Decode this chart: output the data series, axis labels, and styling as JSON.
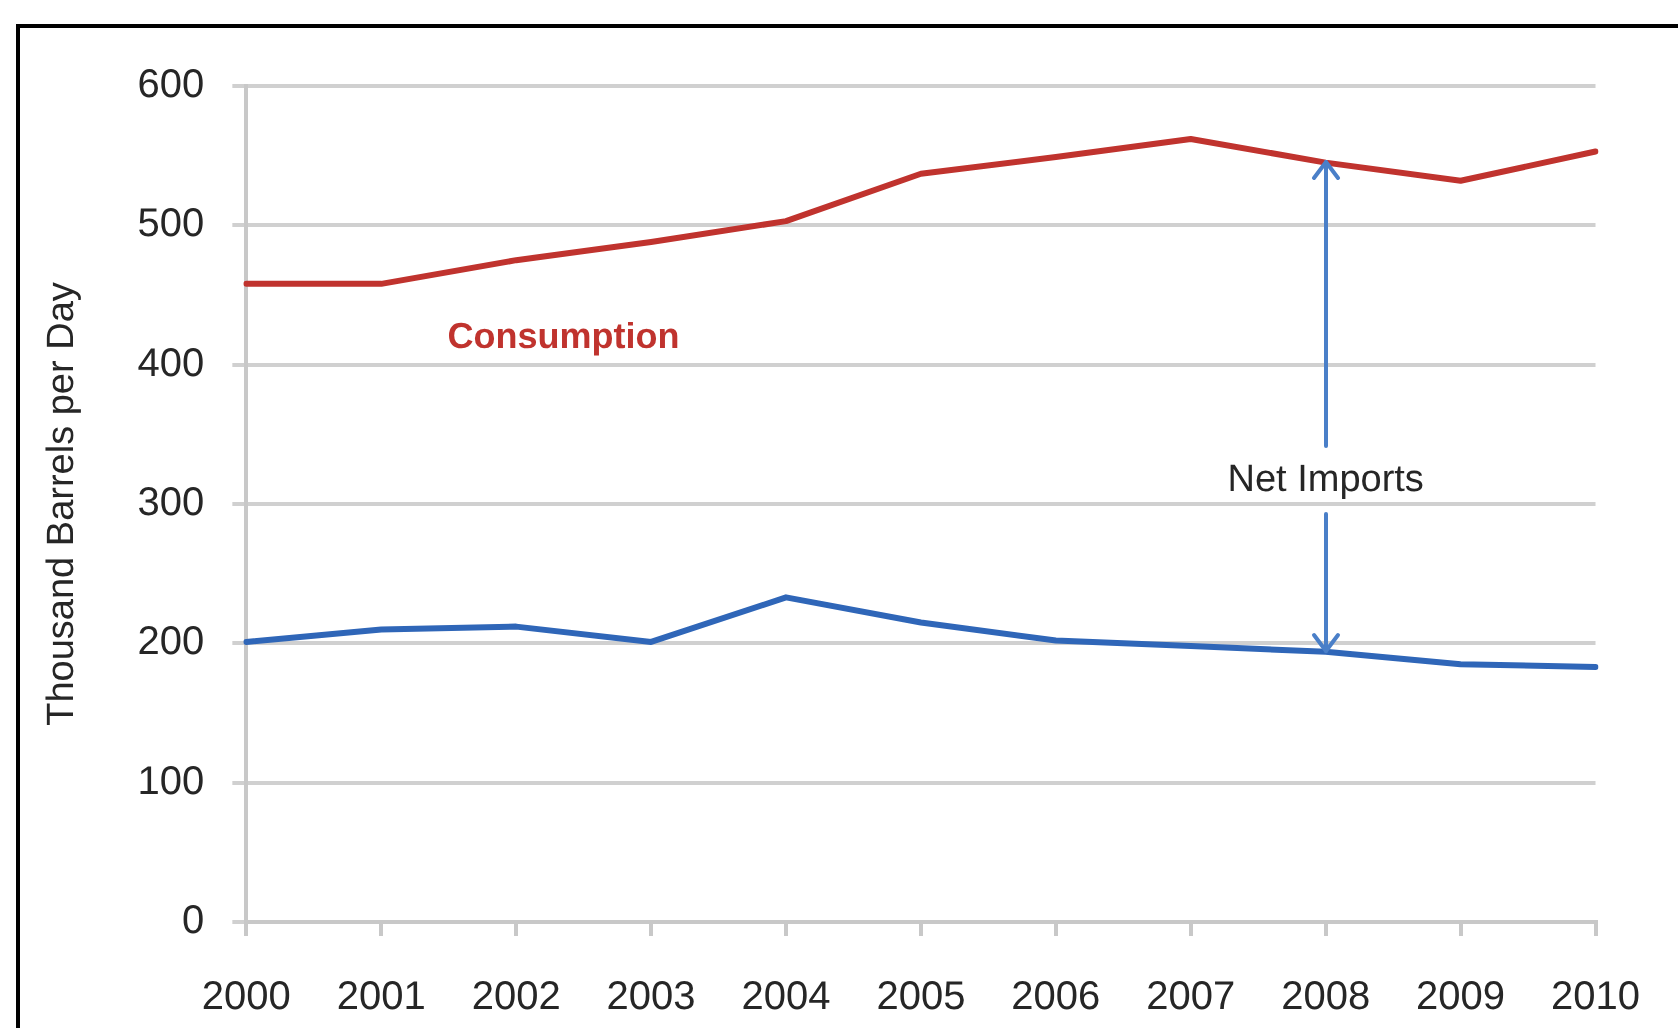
{
  "chart_data": {
    "type": "line",
    "ylabel": "Thousand Barrels per Day",
    "categories": [
      "2000",
      "2001",
      "2002",
      "2003",
      "2004",
      "2005",
      "2006",
      "2007",
      "2008",
      "2009",
      "2010"
    ],
    "series": [
      {
        "name": "Consumption",
        "color": "#c0332e",
        "values": [
          458,
          458,
          475,
          488,
          503,
          537,
          549,
          562,
          545,
          532,
          553
        ]
      },
      {
        "color": "#2f66b8",
        "values": [
          201,
          210,
          212,
          201,
          233,
          215,
          202,
          198,
          194,
          185,
          183
        ]
      }
    ],
    "ylim": [
      0,
      600
    ],
    "yticks": [
      0,
      100,
      200,
      300,
      400,
      500,
      600
    ],
    "grid": "y",
    "annotations": [
      {
        "text": "Net Imports",
        "x": "2008",
        "y": 194
      }
    ]
  }
}
